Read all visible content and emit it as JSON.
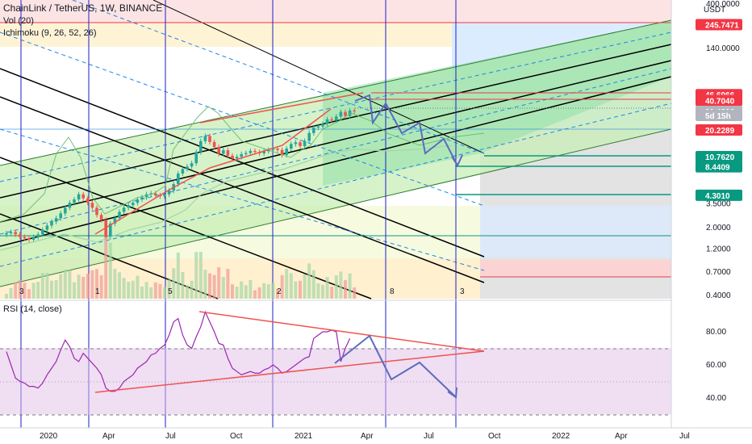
{
  "header": {
    "symbol": "ChainLink / TetherUS, 1W, BINANCE",
    "vol": "Vol (20)",
    "ichimoku": "Ichimoku (9, 26, 52, 26)",
    "rsi": "RSI (14, close)"
  },
  "colors": {
    "red_tag": "#f23645",
    "teal_tag": "#089981",
    "grey_tag": "#b2b5be",
    "rsi_line": "#9c27b0",
    "rsi_band": "#e1bee7",
    "trend_red": "#ef5350",
    "forecast": "#5c6bc0",
    "cycle_line": "#1e1ec8"
  },
  "chart_data": [
    {
      "type": "candlestick",
      "title": "ChainLink / TetherUS, 1W, BINANCE",
      "y_scale": "log",
      "ylim": [
        0.4,
        400
      ],
      "y_ticks": [
        "400.0000",
        "140.0000",
        "40.0000",
        "10.0000",
        "3.5000",
        "2.0000",
        "1.2000",
        "0.7000",
        "0.4000"
      ],
      "y_unit": "USDT",
      "price_labels": [
        {
          "text": "245.7471",
          "value": 245.7471,
          "color": "red"
        },
        {
          "text": "46.6966",
          "value": 46.6966,
          "color": "red"
        },
        {
          "text": "40.7040",
          "value": 40.704,
          "color": "red"
        },
        {
          "text": "31.4206",
          "value": 31.4206,
          "color": "grey"
        },
        {
          "text": "5d 15h",
          "value": 28.5,
          "color": "grey"
        },
        {
          "text": "20.2289",
          "value": 20.2289,
          "color": "red"
        },
        {
          "text": "10.7620",
          "value": 10.762,
          "color": "teal"
        },
        {
          "text": "8.4409",
          "value": 8.4409,
          "color": "teal"
        },
        {
          "text": "4.3010",
          "value": 4.301,
          "color": "teal"
        }
      ],
      "cycle_labels": [
        "3",
        "1",
        "5",
        "2",
        "8",
        "3"
      ],
      "close": [
        1.75,
        1.8,
        1.7,
        1.6,
        1.55,
        1.5,
        1.6,
        1.7,
        1.9,
        2.1,
        2.3,
        2.5,
        2.8,
        3.2,
        3.6,
        3.9,
        4.4,
        4.0,
        3.6,
        3.2,
        2.7,
        2.4,
        1.6,
        2.2,
        2.5,
        2.9,
        3.2,
        3.4,
        3.6,
        3.9,
        4.1,
        4.4,
        4.5,
        4.3,
        4.2,
        4.4,
        4.8,
        5.6,
        7.2,
        8.0,
        8.5,
        9.2,
        12,
        15.5,
        17.5,
        15.2,
        13.5,
        11.5,
        12.5,
        11.0,
        10.3,
        10.7,
        11.4,
        11.7,
        12.3,
        12.0,
        11.6,
        12.2,
        12.6,
        13.0,
        12.6,
        11.2,
        13.0,
        14.5,
        15.1,
        13.8,
        15.6,
        18.8,
        21.4,
        22.0,
        23.4,
        26.0,
        25.3,
        27.8,
        31.0,
        28.2,
        32.1,
        31.4
      ]
    },
    {
      "type": "line",
      "title": "RSI (14, close)",
      "ylim": [
        25,
        95
      ],
      "y_ticks": [
        "80.00",
        "60.00",
        "40.00"
      ],
      "x_ticks": [
        "2020",
        "Apr",
        "Jul",
        "Oct",
        "2021",
        "Apr",
        "Jul",
        "Oct",
        "2022",
        "Apr",
        "Jul"
      ],
      "band": [
        30,
        70
      ],
      "values": [
        68,
        60,
        52,
        50,
        49,
        47,
        47,
        46,
        49,
        54,
        58,
        62,
        69,
        75,
        71,
        64,
        62,
        67,
        64,
        61,
        58,
        54,
        46,
        44,
        44,
        46,
        50,
        52,
        54,
        58,
        60,
        62,
        66,
        67,
        70,
        72,
        78,
        86,
        88,
        78,
        72,
        70,
        77,
        83,
        92,
        86,
        80,
        73,
        72,
        64,
        58,
        56,
        54,
        55,
        56,
        55,
        55,
        57,
        58,
        60,
        58,
        55,
        56,
        58,
        60,
        62,
        64,
        65,
        76,
        78,
        80,
        80,
        81,
        80,
        62,
        70,
        76
      ]
    }
  ]
}
